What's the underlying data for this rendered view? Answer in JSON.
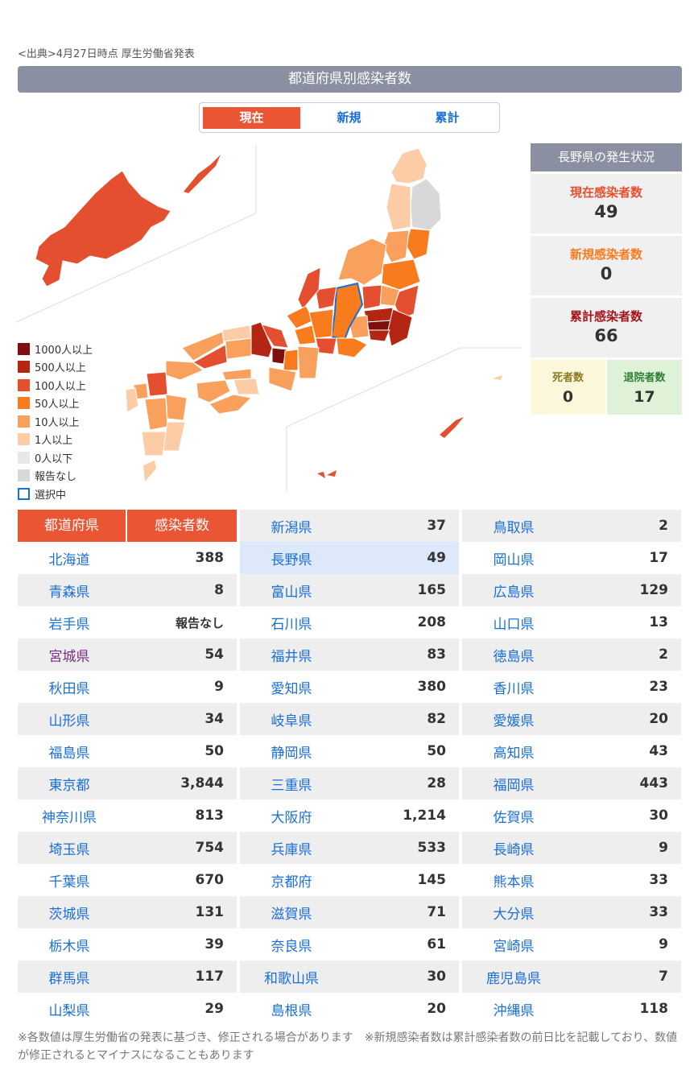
{
  "source": "<出典>4月27日時点 厚生労働省発表",
  "header": "都道府県別感染者数",
  "tabs": [
    "現在",
    "新規",
    "累計"
  ],
  "legend": [
    {
      "label": "1000人以上",
      "color": "#7f0f0f"
    },
    {
      "label": "500人以上",
      "color": "#b52514"
    },
    {
      "label": "100人以上",
      "color": "#e4502f"
    },
    {
      "label": "50人以上",
      "color": "#f87b1e"
    },
    {
      "label": "10人以上",
      "color": "#f9a05c"
    },
    {
      "label": "1人以上",
      "color": "#fbcca6"
    },
    {
      "label": "0人以下",
      "color": "#e8e8e8"
    },
    {
      "label": "報告なし",
      "color": "#d8d8d8"
    },
    {
      "label": "選択中",
      "color": "#1a6fd6"
    }
  ],
  "status": {
    "title": "長野県の発生状況",
    "current_label": "現在感染者数",
    "current_value": "49",
    "new_label": "新規感染者数",
    "new_value": "0",
    "total_label": "累計感染者数",
    "total_value": "66",
    "death_label": "死者数",
    "death_value": "0",
    "discharged_label": "退院者数",
    "discharged_value": "17"
  },
  "table_header": {
    "pref": "都道府県",
    "count": "感染者数"
  },
  "columns": [
    [
      {
        "name": "北海道",
        "value": "388"
      },
      {
        "name": "青森県",
        "value": "8"
      },
      {
        "name": "岩手県",
        "value": "報告なし"
      },
      {
        "name": "宮城県",
        "value": "54"
      },
      {
        "name": "秋田県",
        "value": "9"
      },
      {
        "name": "山形県",
        "value": "34"
      },
      {
        "name": "福島県",
        "value": "50"
      },
      {
        "name": "東京都",
        "value": "3,844"
      },
      {
        "name": "神奈川県",
        "value": "813"
      },
      {
        "name": "埼玉県",
        "value": "754"
      },
      {
        "name": "千葉県",
        "value": "670"
      },
      {
        "name": "茨城県",
        "value": "131"
      },
      {
        "name": "栃木県",
        "value": "39"
      },
      {
        "name": "群馬県",
        "value": "117"
      },
      {
        "name": "山梨県",
        "value": "29"
      }
    ],
    [
      {
        "name": "新潟県",
        "value": "37"
      },
      {
        "name": "長野県",
        "value": "49"
      },
      {
        "name": "富山県",
        "value": "165"
      },
      {
        "name": "石川県",
        "value": "208"
      },
      {
        "name": "福井県",
        "value": "83"
      },
      {
        "name": "愛知県",
        "value": "380"
      },
      {
        "name": "岐阜県",
        "value": "82"
      },
      {
        "name": "静岡県",
        "value": "50"
      },
      {
        "name": "三重県",
        "value": "28"
      },
      {
        "name": "大阪府",
        "value": "1,214"
      },
      {
        "name": "兵庫県",
        "value": "533"
      },
      {
        "name": "京都府",
        "value": "145"
      },
      {
        "name": "滋賀県",
        "value": "71"
      },
      {
        "name": "奈良県",
        "value": "61"
      },
      {
        "name": "和歌山県",
        "value": "30"
      },
      {
        "name": "島根県",
        "value": "20"
      }
    ],
    [
      {
        "name": "鳥取県",
        "value": "2"
      },
      {
        "name": "岡山県",
        "value": "17"
      },
      {
        "name": "広島県",
        "value": "129"
      },
      {
        "name": "山口県",
        "value": "13"
      },
      {
        "name": "徳島県",
        "value": "2"
      },
      {
        "name": "香川県",
        "value": "23"
      },
      {
        "name": "愛媛県",
        "value": "20"
      },
      {
        "name": "高知県",
        "value": "43"
      },
      {
        "name": "福岡県",
        "value": "443"
      },
      {
        "name": "佐賀県",
        "value": "30"
      },
      {
        "name": "長崎県",
        "value": "9"
      },
      {
        "name": "熊本県",
        "value": "33"
      },
      {
        "name": "大分県",
        "value": "33"
      },
      {
        "name": "宮崎県",
        "value": "9"
      },
      {
        "name": "鹿児島県",
        "value": "7"
      },
      {
        "name": "沖縄県",
        "value": "118"
      }
    ]
  ],
  "note": "※各数値は厚生労働省の発表に基づき、修正される場合があります　※新規感染者数は累計感染者数の前日比を記載しており、数値が修正されるとマイナスになることもあります"
}
